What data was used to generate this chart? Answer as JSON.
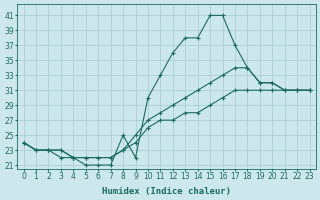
{
  "xlabel": "Humidex (Indice chaleur)",
  "background_color": "#cce8ec",
  "grid_color": "#aacdd4",
  "line_color": "#1a6b60",
  "xlim": [
    -0.5,
    23.5
  ],
  "ylim": [
    20.5,
    42.5
  ],
  "yticks": [
    21,
    23,
    25,
    27,
    29,
    31,
    33,
    35,
    37,
    39,
    41
  ],
  "xticks": [
    0,
    1,
    2,
    3,
    4,
    5,
    6,
    7,
    8,
    9,
    10,
    11,
    12,
    13,
    14,
    15,
    16,
    17,
    18,
    19,
    20,
    21,
    22,
    23
  ],
  "series": [
    {
      "x": [
        0,
        1,
        2,
        3,
        4,
        5,
        6,
        7,
        8,
        9,
        10,
        11,
        12,
        13,
        14,
        15,
        16,
        17,
        18,
        19,
        20,
        21,
        22,
        23
      ],
      "y": [
        24,
        23,
        23,
        22,
        22,
        21,
        21,
        21,
        25,
        22,
        30,
        33,
        36,
        38,
        38,
        41,
        41,
        37,
        34,
        32,
        32,
        31,
        31,
        31
      ]
    },
    {
      "x": [
        0,
        1,
        2,
        3,
        4,
        5,
        6,
        7,
        8,
        9,
        10,
        11,
        12,
        13,
        14,
        15,
        16,
        17,
        18,
        19,
        20,
        21,
        22,
        23
      ],
      "y": [
        24,
        23,
        23,
        23,
        22,
        22,
        22,
        22,
        23,
        25,
        27,
        28,
        29,
        30,
        31,
        32,
        33,
        34,
        34,
        32,
        32,
        31,
        31,
        31
      ]
    },
    {
      "x": [
        0,
        1,
        2,
        3,
        4,
        5,
        6,
        7,
        8,
        9,
        10,
        11,
        12,
        13,
        14,
        15,
        16,
        17,
        18,
        19,
        20,
        21,
        22,
        23
      ],
      "y": [
        24,
        23,
        23,
        23,
        22,
        22,
        22,
        22,
        23,
        24,
        26,
        27,
        27,
        28,
        28,
        29,
        30,
        31,
        31,
        31,
        31,
        31,
        31,
        31
      ]
    }
  ]
}
